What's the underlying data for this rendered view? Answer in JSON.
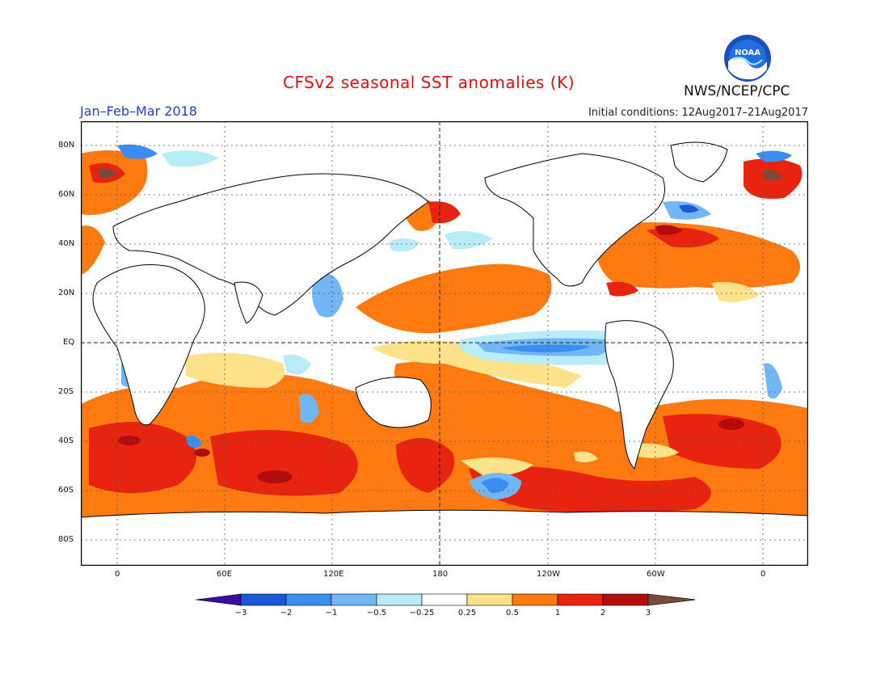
{
  "title": "CFSv2 seasonal SST anomalies (K)",
  "period": "Jan–Feb–Mar 2018",
  "initial_conditions": "Initial conditions: 12Aug2017–21Aug2017",
  "agency": "NWS/NCEP/CPC",
  "logo_text": "NOAA",
  "map": {
    "lat_ticks": [
      "80N",
      "60N",
      "40N",
      "20N",
      "EQ",
      "20S",
      "40S",
      "60S",
      "80S"
    ],
    "lon_ticks": [
      "0",
      "60E",
      "120E",
      "180",
      "120W",
      "60W",
      "0"
    ]
  },
  "legend": {
    "thresholds": [
      "−3",
      "−2",
      "−1",
      "−0.5",
      "−0.25",
      "0.25",
      "0.5",
      "1",
      "2",
      "3"
    ],
    "colors": [
      "#3a0fa0",
      "#1c58d6",
      "#3a8ef0",
      "#72b6f5",
      "#b8ecf6",
      "#ffffff",
      "#fde28a",
      "#ff7a10",
      "#e8230f",
      "#b10d0d",
      "#7a4a3a"
    ]
  }
}
